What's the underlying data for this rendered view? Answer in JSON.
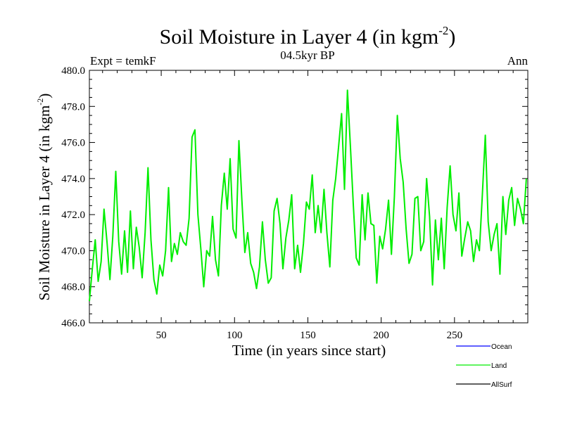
{
  "chart_data": {
    "type": "line",
    "title": "Soil Moisture in Layer 4 (in kgm",
    "title_sup": "-2",
    "title_close": ")",
    "subtitle": "04.5kyr BP",
    "left_label": "Expt = temkF",
    "right_label": "Ann",
    "xlabel": "Time (in years since start)",
    "ylabel": "Soil Moisture in Layer 4 (in kgm",
    "ylabel_sup": "-2",
    "ylabel_close": ")",
    "xlim": [
      1,
      300
    ],
    "ylim": [
      466.0,
      480.0
    ],
    "xticks": [
      50,
      100,
      150,
      200,
      250
    ],
    "xtick_labels": [
      "50",
      "100",
      "150",
      "200",
      "250"
    ],
    "yticks": [
      466,
      468,
      470,
      472,
      474,
      476,
      478,
      480
    ],
    "ytick_labels": [
      "466.0",
      "468.0",
      "470.0",
      "472.0",
      "474.0",
      "476.0",
      "478.0",
      "480.0"
    ],
    "legend": [
      {
        "name": "Ocean",
        "color": "#0000ff"
      },
      {
        "name": "Land",
        "color": "#00ee00"
      },
      {
        "name": "AllSurf",
        "color": "#000000"
      }
    ],
    "series": [
      {
        "name": "Land",
        "color": "#00ee00",
        "x": [
          1,
          3,
          5,
          7,
          9,
          11,
          13,
          15,
          17,
          19,
          21,
          23,
          25,
          27,
          29,
          31,
          33,
          35,
          37,
          39,
          41,
          43,
          45,
          47,
          49,
          51,
          53,
          55,
          57,
          59,
          61,
          63,
          65,
          67,
          69,
          71,
          73,
          75,
          77,
          79,
          81,
          83,
          85,
          87,
          89,
          91,
          93,
          95,
          97,
          99,
          101,
          103,
          105,
          107,
          109,
          111,
          113,
          115,
          117,
          119,
          121,
          123,
          125,
          127,
          129,
          131,
          133,
          135,
          137,
          139,
          141,
          143,
          145,
          147,
          149,
          151,
          153,
          155,
          157,
          159,
          161,
          163,
          165,
          167,
          169,
          171,
          173,
          175,
          177,
          179,
          181,
          183,
          185,
          187,
          189,
          191,
          193,
          195,
          197,
          199,
          201,
          203,
          205,
          207,
          209,
          211,
          213,
          215,
          217,
          219,
          221,
          223,
          225,
          227,
          229,
          231,
          233,
          235,
          237,
          239,
          241,
          243,
          245,
          247,
          249,
          251,
          253,
          255,
          257,
          259,
          261,
          263,
          265,
          267,
          269,
          271,
          273,
          275,
          277,
          279,
          281,
          283,
          285,
          287,
          289,
          291,
          293,
          295,
          297,
          299
        ],
        "values": [
          467.2,
          469.0,
          470.6,
          468.3,
          469.4,
          472.3,
          470.5,
          468.4,
          470.8,
          474.4,
          470.5,
          468.7,
          471.1,
          468.8,
          472.2,
          469.0,
          471.3,
          470.2,
          468.5,
          471.0,
          474.6,
          470.6,
          468.4,
          467.6,
          469.2,
          468.6,
          470.0,
          473.5,
          469.4,
          470.4,
          469.8,
          471.0,
          470.5,
          470.3,
          471.8,
          476.3,
          476.7,
          472.0,
          470.1,
          468.0,
          470.0,
          469.7,
          471.9,
          469.5,
          468.6,
          472.5,
          474.3,
          472.3,
          475.1,
          471.2,
          470.7,
          476.1,
          472.8,
          469.9,
          471.0,
          469.3,
          468.8,
          467.9,
          469.1,
          471.6,
          469.5,
          468.2,
          468.5,
          472.2,
          472.9,
          471.5,
          469.0,
          470.7,
          471.7,
          473.1,
          469.0,
          470.3,
          468.8,
          470.4,
          472.7,
          472.3,
          474.2,
          471.0,
          472.5,
          471.0,
          473.4,
          471.0,
          469.1,
          472.8,
          474.0,
          475.8,
          477.6,
          473.4,
          478.9,
          475.8,
          472.5,
          469.6,
          469.2,
          473.1,
          470.6,
          473.2,
          471.5,
          471.4,
          468.2,
          470.8,
          470.1,
          471.2,
          472.8,
          469.8,
          473.0,
          477.5,
          475.1,
          473.8,
          471.2,
          469.3,
          469.8,
          472.9,
          473.0,
          470.0,
          470.5,
          474.0,
          471.9,
          468.1,
          471.7,
          469.5,
          471.8,
          469.0,
          472.4,
          474.7,
          472.0,
          471.1,
          473.2,
          469.7,
          470.7,
          471.6,
          471.1,
          469.4,
          470.6,
          470.0,
          473.1,
          476.4,
          471.6,
          470.0,
          470.9,
          471.5,
          468.7,
          473.0,
          470.9,
          472.8,
          473.5,
          471.4,
          472.9,
          472.3,
          471.5,
          474.0
        ]
      }
    ]
  }
}
